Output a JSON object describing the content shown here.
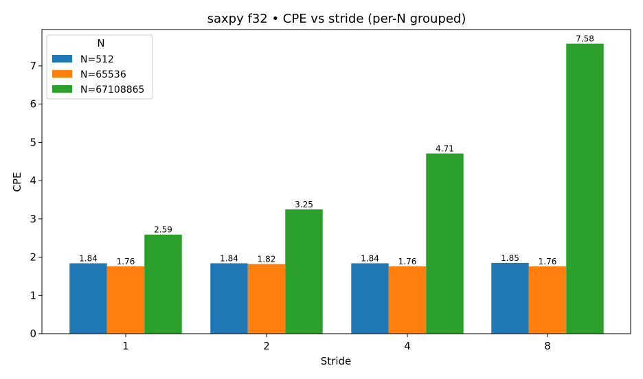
{
  "chart_data": {
    "type": "bar",
    "title": "saxpy f32 • CPE vs stride (per-N grouped)",
    "xlabel": "Stride",
    "ylabel": "CPE",
    "categories": [
      "1",
      "2",
      "4",
      "8"
    ],
    "ylim": [
      0,
      7.95
    ],
    "yticks": [
      0,
      1,
      2,
      3,
      4,
      5,
      6,
      7
    ],
    "grid": false,
    "legend": {
      "title": "N",
      "placement": "top-left"
    },
    "series": [
      {
        "name": "N=512",
        "color": "#1f77b4",
        "values": [
          1.84,
          1.84,
          1.84,
          1.85
        ],
        "labels": [
          "1.84",
          "1.84",
          "1.84",
          "1.85"
        ]
      },
      {
        "name": "N=65536",
        "color": "#ff7f0e",
        "values": [
          1.76,
          1.82,
          1.76,
          1.76
        ],
        "labels": [
          "1.76",
          "1.82",
          "1.76",
          "1.76"
        ]
      },
      {
        "name": "N=67108865",
        "color": "#2ca02c",
        "values": [
          2.59,
          3.25,
          4.71,
          7.58
        ],
        "labels": [
          "2.59",
          "3.25",
          "4.71",
          "7.58"
        ]
      }
    ]
  }
}
